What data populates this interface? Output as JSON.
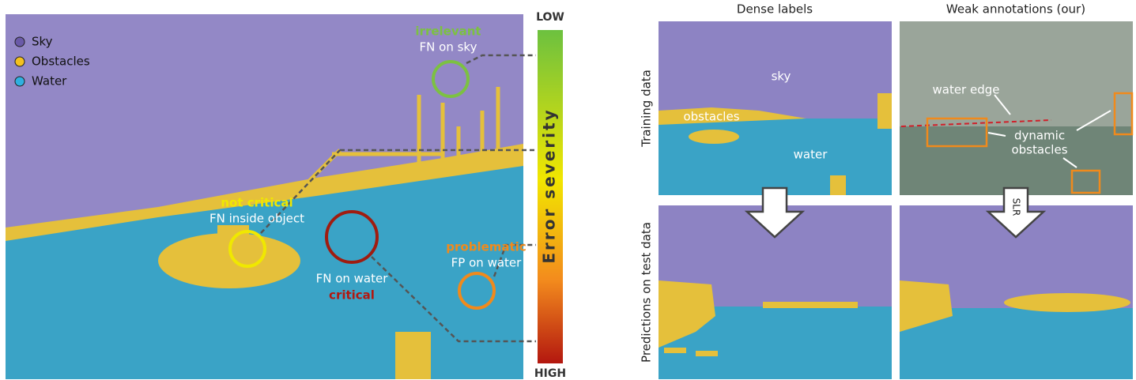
{
  "left_panel": {
    "legend": [
      "Sky",
      "Obstacles",
      "Water"
    ],
    "annotations": [
      {
        "tag": "irrelevant",
        "label": "FN on sky"
      },
      {
        "tag": "not critical",
        "label": "FN inside object"
      },
      {
        "label": "FN on water",
        "tag": "critical"
      },
      {
        "tag": "problematic",
        "label": "FP on water"
      }
    ],
    "scale": {
      "top": "LOW",
      "title": "Error severity",
      "bottom": "HIGH"
    }
  },
  "right_panel": {
    "columns": [
      "Dense labels",
      "Weak annotations (our)"
    ],
    "rows": [
      "Training data",
      "Predictions on test data"
    ],
    "dense_labels": [
      "sky",
      "obstacles",
      "water"
    ],
    "weak_labels": [
      "water edge",
      "dynamic",
      "obstacles"
    ],
    "arrow_label": "SLR"
  }
}
